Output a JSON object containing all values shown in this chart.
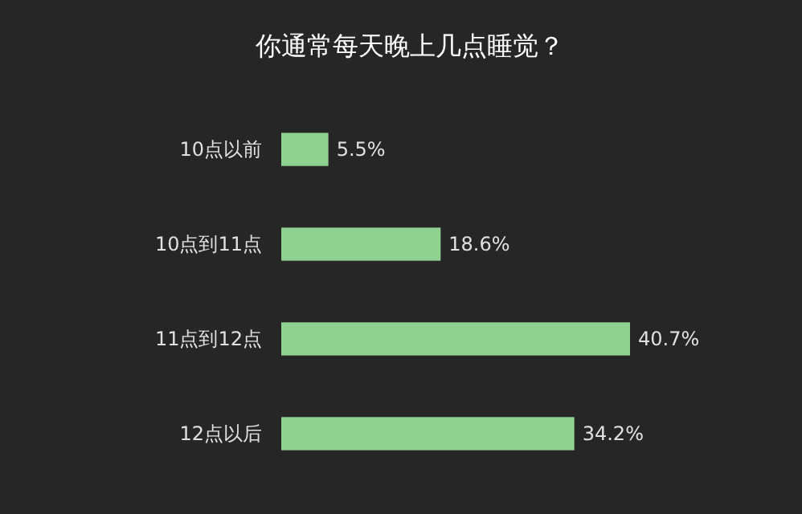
{
  "chart_data": {
    "type": "bar",
    "orientation": "horizontal",
    "title": "你通常每天晚上几点睡觉？",
    "categories": [
      "10点以前",
      "10点到11点",
      "11点到12点",
      "12点以后"
    ],
    "values": [
      5.5,
      18.6,
      40.7,
      34.2
    ],
    "value_labels": [
      "5.5%",
      "18.6%",
      "40.7%",
      "34.2%"
    ],
    "color": "#8fd18f"
  }
}
